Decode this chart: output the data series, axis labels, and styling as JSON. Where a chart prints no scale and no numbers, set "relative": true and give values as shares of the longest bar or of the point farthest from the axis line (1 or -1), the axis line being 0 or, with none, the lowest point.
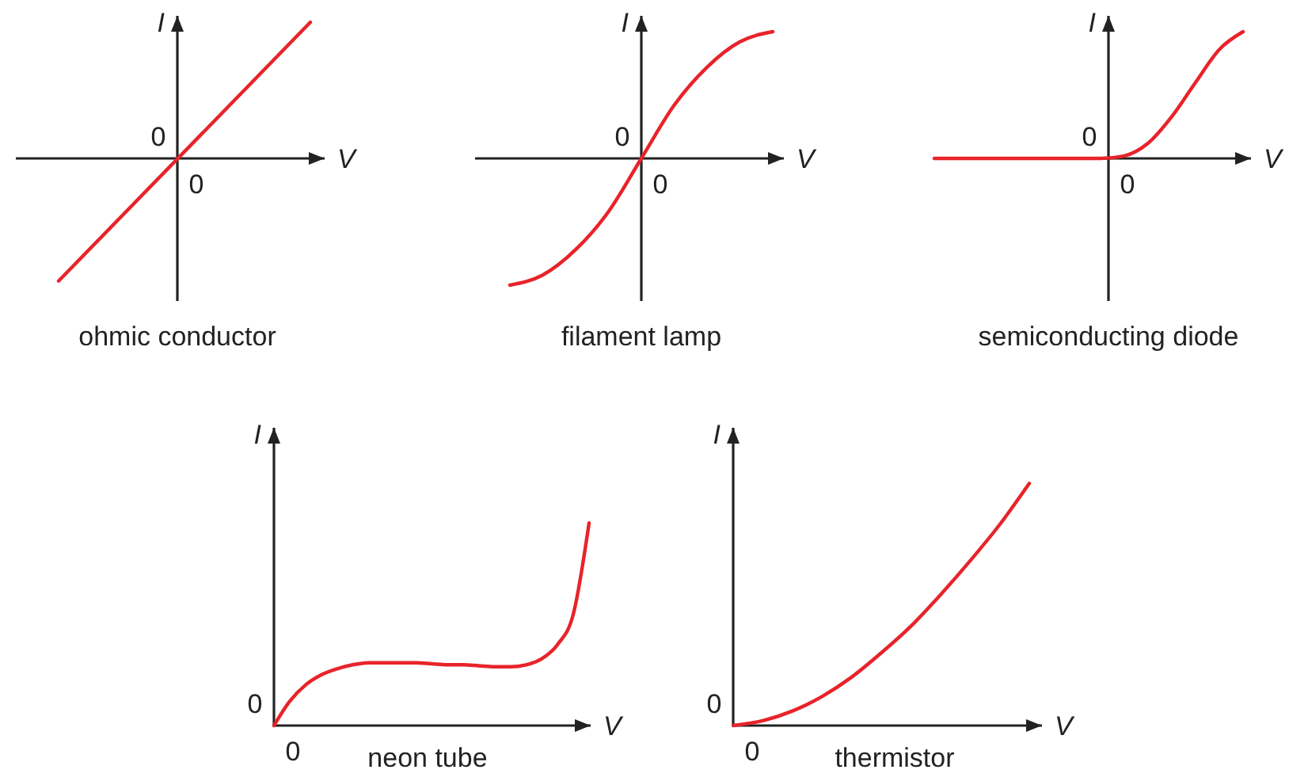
{
  "chart_data": [
    {
      "type": "line",
      "title": "ohmic conductor",
      "xlabel": "V",
      "ylabel": "I",
      "relative": true,
      "annotations": [
        "0",
        "0"
      ],
      "categories": [
        null,
        null
      ],
      "series": [
        {
          "color": "#e8232a",
          "values": [
            -0.9,
            1
          ]
        }
      ]
    },
    {
      "type": "line",
      "title": "filament lamp",
      "xlabel": "V",
      "ylabel": "I",
      "relative": true,
      "annotations": [
        "0",
        "0"
      ],
      "categories": [
        null,
        null,
        null,
        null,
        null,
        null,
        null,
        null,
        null
      ],
      "series": [
        {
          "color": "#e8232a",
          "values": [
            -1,
            -0.92,
            -0.72,
            -0.42,
            0,
            0.42,
            0.72,
            0.92,
            1
          ]
        }
      ]
    },
    {
      "type": "line",
      "title": "semiconducting diode",
      "xlabel": "V",
      "ylabel": "I",
      "relative": true,
      "annotations": [
        "0",
        "0"
      ],
      "categories": [
        null,
        null,
        null,
        null,
        null,
        null,
        null,
        null,
        null,
        null,
        null,
        null,
        null,
        null
      ],
      "series": [
        {
          "color": "#e8232a",
          "values": [
            0,
            0,
            0,
            0,
            0,
            0,
            0,
            0,
            0.02,
            0.12,
            0.33,
            0.6,
            0.86,
            1
          ]
        }
      ]
    },
    {
      "type": "line",
      "title": "neon tube",
      "xlabel": "V",
      "ylabel": "I",
      "relative": true,
      "annotations": [
        "0",
        "0"
      ],
      "categories": [
        null,
        null,
        null,
        null,
        null,
        null,
        null,
        null,
        null,
        null,
        null,
        null,
        null,
        null,
        null,
        null,
        null,
        null,
        null,
        null,
        null
      ],
      "series": [
        {
          "color": "#e8232a",
          "values": [
            0,
            0.12,
            0.2,
            0.25,
            0.28,
            0.3,
            0.31,
            0.31,
            0.31,
            0.31,
            0.305,
            0.3,
            0.3,
            0.295,
            0.29,
            0.29,
            0.3,
            0.33,
            0.4,
            0.55,
            1
          ]
        }
      ]
    },
    {
      "type": "line",
      "title": "thermistor",
      "xlabel": "V",
      "ylabel": "I",
      "relative": true,
      "annotations": [
        "0",
        "0"
      ],
      "categories": [
        null,
        null,
        null,
        null,
        null,
        null,
        null,
        null,
        null,
        null,
        null
      ],
      "series": [
        {
          "color": "#e8232a",
          "values": [
            0,
            0.02,
            0.06,
            0.12,
            0.2,
            0.3,
            0.41,
            0.54,
            0.68,
            0.83,
            1
          ]
        }
      ]
    }
  ]
}
